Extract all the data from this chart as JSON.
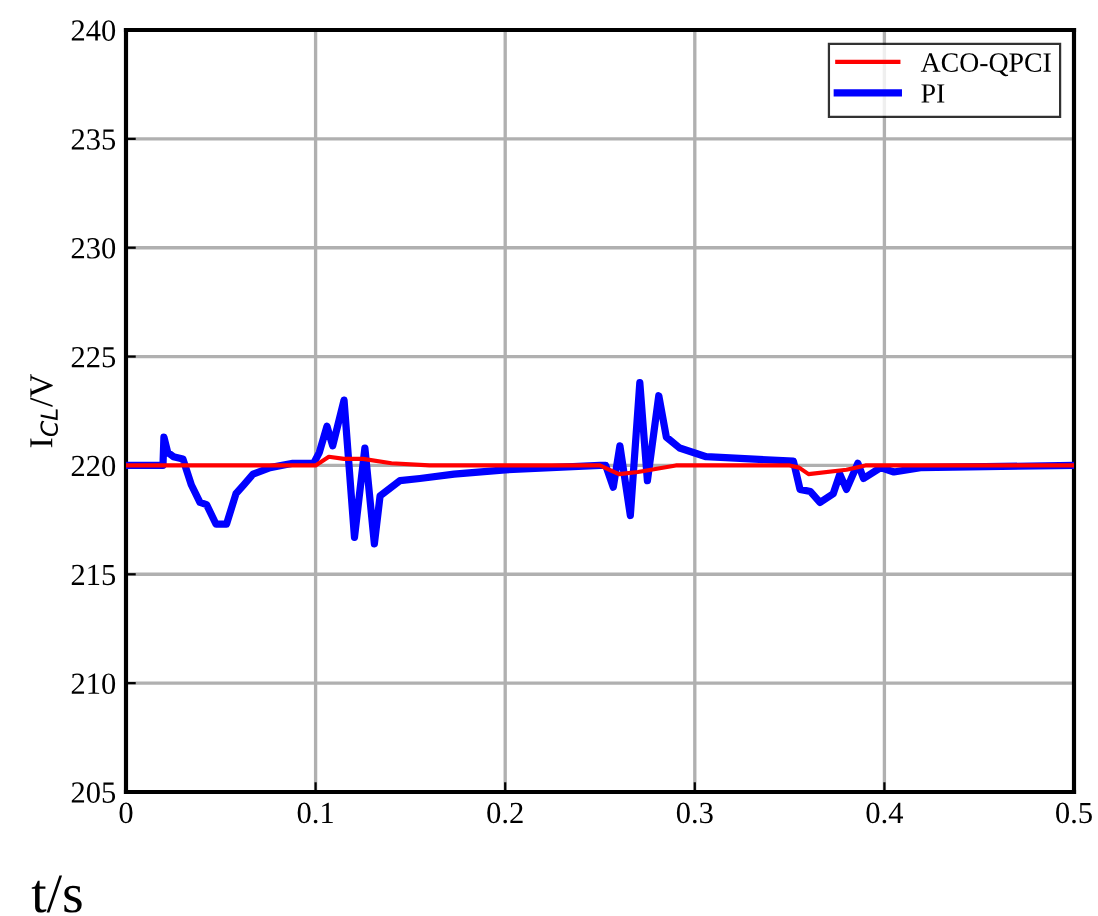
{
  "chart_data": {
    "type": "line",
    "xlabel": "t/s",
    "ylabel": "I$_{CL}$/V",
    "xlim": [
      0,
      0.5
    ],
    "ylim": [
      205,
      240
    ],
    "xticks": [
      0,
      0.1,
      0.2,
      0.3,
      0.4,
      0.5
    ],
    "yticks": [
      205,
      210,
      215,
      220,
      225,
      230,
      235,
      240
    ],
    "grid": true,
    "legend": "top right",
    "series": [
      {
        "name": "ACO-QPCI",
        "color": "#ff0000",
        "x": [
          0,
          0.1,
          0.107,
          0.115,
          0.125,
          0.14,
          0.16,
          0.2,
          0.25,
          0.255,
          0.26,
          0.27,
          0.29,
          0.35,
          0.355,
          0.36,
          0.38,
          0.39,
          0.4,
          0.5
        ],
        "values": [
          220,
          220,
          220.4,
          220.3,
          220.3,
          220.1,
          220.0,
          220,
          220.0,
          219.8,
          219.6,
          219.7,
          220,
          220.0,
          219.9,
          219.6,
          219.8,
          220.0,
          220.0,
          220
        ]
      },
      {
        "name": "PI",
        "color": "#0000ff",
        "x": [
          0,
          0.0195,
          0.02,
          0.022,
          0.025,
          0.03,
          0.0345,
          0.039,
          0.0425,
          0.0475,
          0.053,
          0.058,
          0.062,
          0.067,
          0.076,
          0.088,
          0.099,
          0.102,
          0.106,
          0.109,
          0.115,
          0.1205,
          0.126,
          0.131,
          0.134,
          0.1445,
          0.155,
          0.173,
          0.2,
          0.25,
          0.253,
          0.257,
          0.2605,
          0.266,
          0.271,
          0.275,
          0.281,
          0.285,
          0.292,
          0.306,
          0.352,
          0.3555,
          0.361,
          0.366,
          0.373,
          0.3765,
          0.38,
          0.386,
          0.389,
          0.398,
          0.405,
          0.419,
          0.5
        ],
        "values": [
          220,
          220,
          221.3,
          220.6,
          220.4,
          220.3,
          219.1,
          218.3,
          218.2,
          217.3,
          217.3,
          218.7,
          219.1,
          219.6,
          219.9,
          220.1,
          220.1,
          220.6,
          221.8,
          220.9,
          223.0,
          216.7,
          220.8,
          216.4,
          218.6,
          219.3,
          219.4,
          219.6,
          219.8,
          220.0,
          220.0,
          219.0,
          220.9,
          217.7,
          223.8,
          219.3,
          223.2,
          221.3,
          220.8,
          220.4,
          220.2,
          218.9,
          218.8,
          218.3,
          218.7,
          219.6,
          218.9,
          220.1,
          219.4,
          219.9,
          219.7,
          219.9,
          220
        ]
      }
    ]
  }
}
